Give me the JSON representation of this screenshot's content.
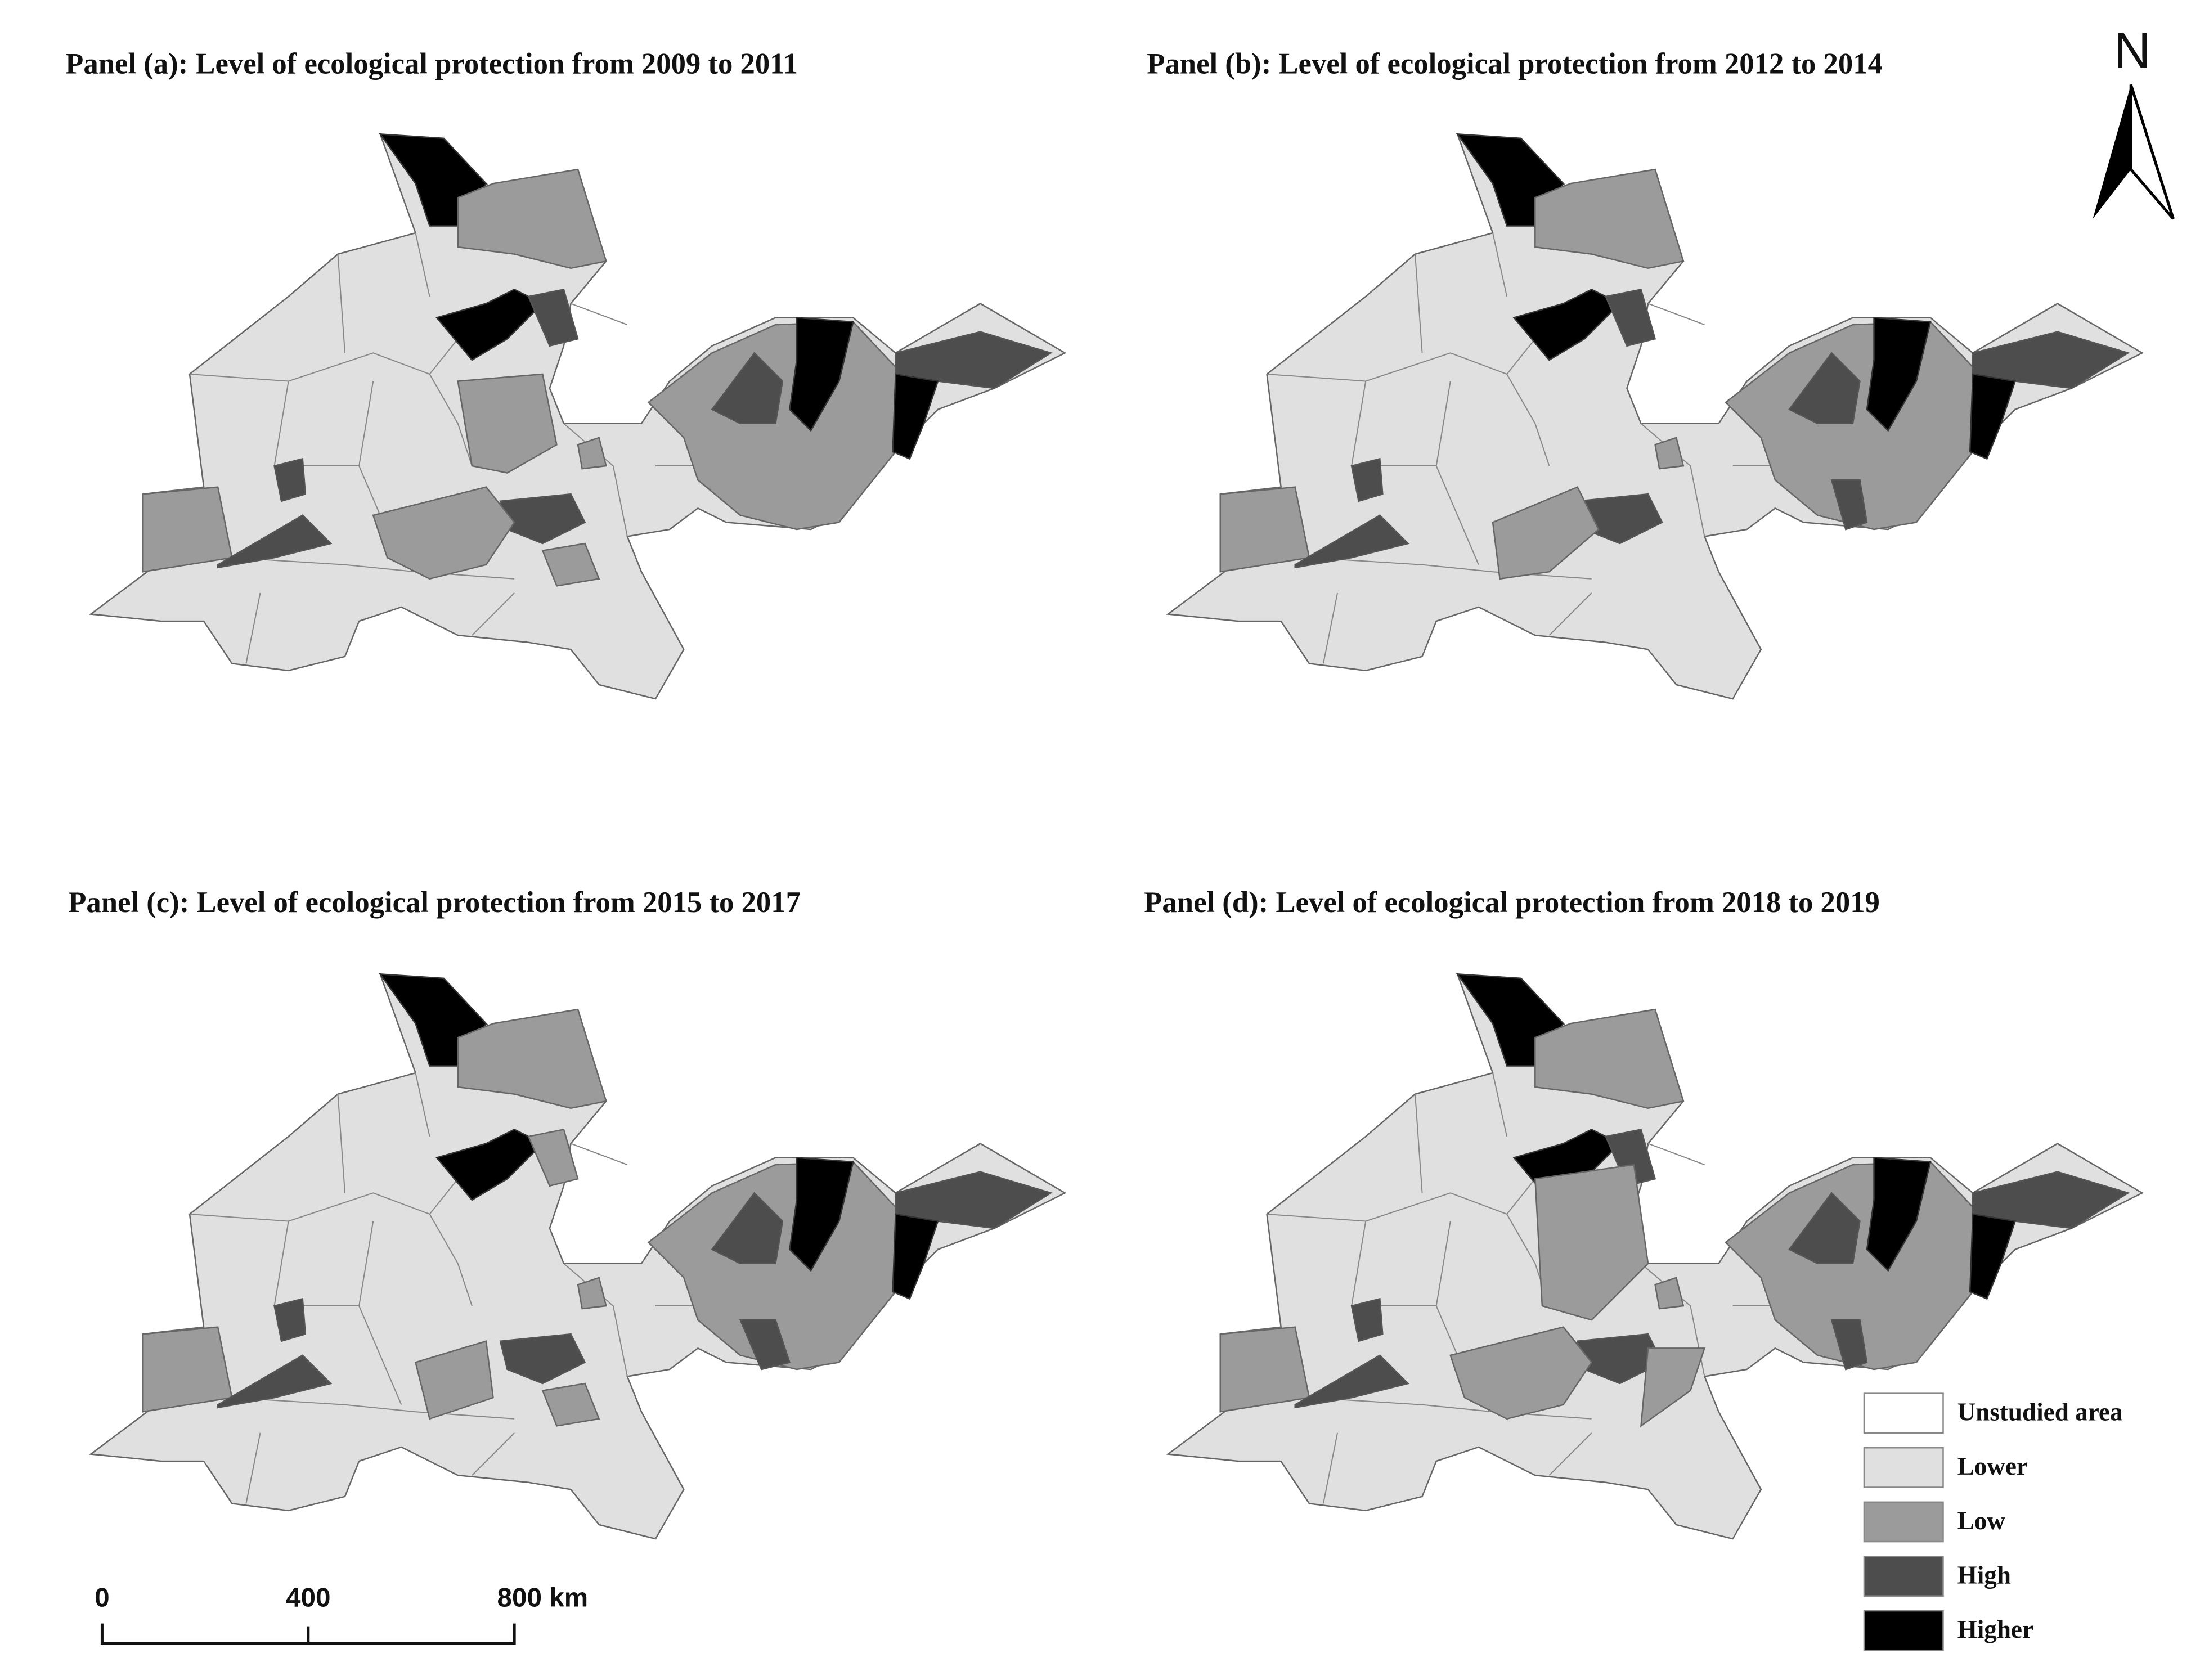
{
  "panels": [
    {
      "title": "Panel (a): Level of ecological protection from 2009 to 2011"
    },
    {
      "title": "Panel (b): Level of ecological protection from 2012 to 2014"
    },
    {
      "title": "Panel (c): Level of ecological protection from 2015 to 2017"
    },
    {
      "title": "Panel (d): Level of ecological protection from 2018 to 2019"
    }
  ],
  "north_arrow": "N",
  "scale_bar": {
    "labels": [
      "0",
      "400",
      "800 km"
    ]
  },
  "legend": {
    "items": [
      {
        "label": "Unstudied area",
        "color": "#ffffff"
      },
      {
        "label": "Lower",
        "color": "#e0e0e0"
      },
      {
        "label": "Low",
        "color": "#9b9b9b"
      },
      {
        "label": "High",
        "color": "#4d4d4d"
      },
      {
        "label": "Higher",
        "color": "#000000"
      }
    ]
  }
}
